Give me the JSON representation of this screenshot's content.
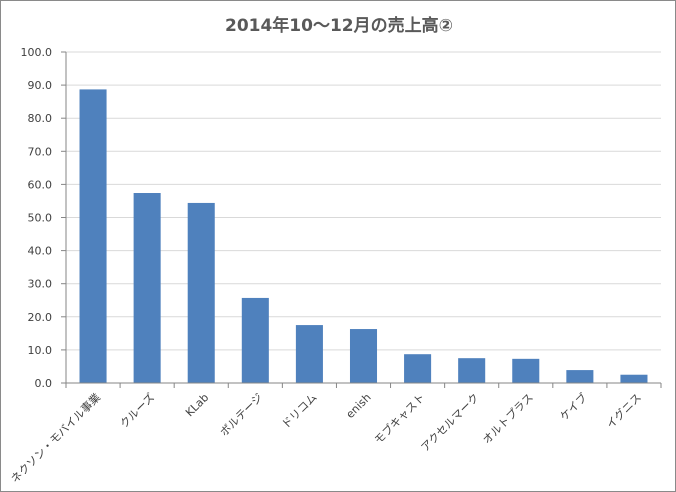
{
  "chart_data": {
    "type": "bar",
    "title": "2014年10〜12月の売上高②",
    "categories": [
      "ネクソン・モバイル事業",
      "クルーズ",
      "KLab",
      "ボルテージ",
      "ドリコム",
      "enish",
      "モブキャスト",
      "アクセルマーク",
      "オルトプラス",
      "ケイブ",
      "イグニス"
    ],
    "values": [
      88.7,
      57.4,
      54.4,
      25.7,
      17.5,
      16.3,
      8.7,
      7.5,
      7.3,
      3.9,
      2.5
    ],
    "ylim": [
      0,
      100
    ],
    "yticks": [
      "0.0",
      "10.0",
      "20.0",
      "30.0",
      "40.0",
      "50.0",
      "60.0",
      "70.0",
      "80.0",
      "90.0",
      "100.0"
    ],
    "grid": true,
    "bar_color": "#4f81bd",
    "grid_color": "#d9d9d9",
    "axis_color": "#868686"
  }
}
